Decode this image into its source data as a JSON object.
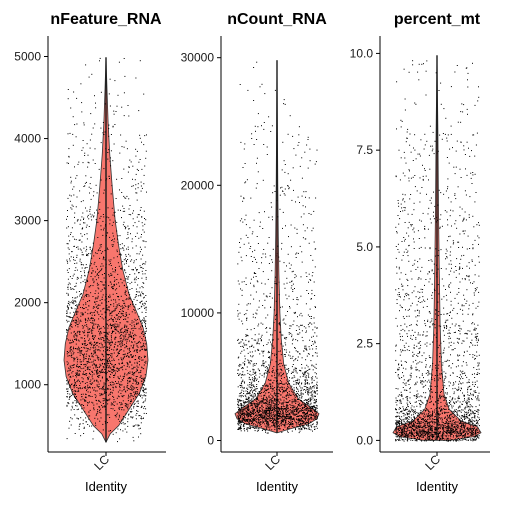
{
  "chart_data": [
    {
      "type": "violin",
      "title": "nFeature_RNA",
      "xlabel": "Identity",
      "categories": [
        "LC"
      ],
      "yticks": [
        1000,
        2000,
        3000,
        4000,
        5000
      ],
      "ylim": [
        180,
        5250
      ],
      "range": [
        300,
        4990
      ],
      "median": 1500,
      "iqr": [
        1150,
        2100
      ],
      "density": [
        [
          300,
          0.0
        ],
        [
          400,
          0.1
        ],
        [
          500,
          0.3
        ],
        [
          700,
          0.55
        ],
        [
          900,
          0.8
        ],
        [
          1100,
          0.95
        ],
        [
          1300,
          1.0
        ],
        [
          1500,
          0.97
        ],
        [
          1700,
          0.88
        ],
        [
          1900,
          0.72
        ],
        [
          2100,
          0.55
        ],
        [
          2400,
          0.4
        ],
        [
          2700,
          0.3
        ],
        [
          3000,
          0.22
        ],
        [
          3400,
          0.15
        ],
        [
          3800,
          0.09
        ],
        [
          4200,
          0.05
        ],
        [
          4600,
          0.025
        ],
        [
          4990,
          0.0
        ]
      ],
      "fill_color": "#f8766d"
    },
    {
      "type": "violin",
      "title": "nCount_RNA",
      "xlabel": "Identity",
      "categories": [
        "LC"
      ],
      "yticks": [
        0,
        10000,
        20000,
        30000
      ],
      "ylim": [
        -900,
        31700
      ],
      "range": [
        600,
        29800
      ],
      "median": 2200,
      "iqr": [
        1300,
        3800
      ],
      "density": [
        [
          600,
          0.0
        ],
        [
          900,
          0.3
        ],
        [
          1300,
          0.75
        ],
        [
          1700,
          0.95
        ],
        [
          2100,
          1.0
        ],
        [
          2600,
          0.8
        ],
        [
          3300,
          0.5
        ],
        [
          4500,
          0.28
        ],
        [
          6000,
          0.16
        ],
        [
          8000,
          0.1
        ],
        [
          10000,
          0.07
        ],
        [
          13000,
          0.045
        ],
        [
          16000,
          0.03
        ],
        [
          20000,
          0.02
        ],
        [
          25000,
          0.01
        ],
        [
          29800,
          0.0
        ]
      ],
      "fill_color": "#f8766d"
    },
    {
      "type": "violin",
      "title": "percent_mt",
      "xlabel": "Identity",
      "categories": [
        "LC"
      ],
      "yticks": [
        0.0,
        2.5,
        5.0,
        7.5,
        10.0
      ],
      "ytick_labels": [
        "0.0",
        "2.5",
        "5.0",
        "7.5",
        "10.0"
      ],
      "ylim": [
        -0.3,
        10.45
      ],
      "range": [
        0.0,
        9.95
      ],
      "median": 0.3,
      "iqr": [
        0.15,
        0.9
      ],
      "density": [
        [
          0.0,
          0.3
        ],
        [
          0.1,
          0.85
        ],
        [
          0.2,
          1.0
        ],
        [
          0.35,
          0.92
        ],
        [
          0.5,
          0.55
        ],
        [
          0.8,
          0.28
        ],
        [
          1.2,
          0.16
        ],
        [
          2.0,
          0.1
        ],
        [
          3.0,
          0.07
        ],
        [
          4.5,
          0.05
        ],
        [
          6.0,
          0.035
        ],
        [
          8.0,
          0.02
        ],
        [
          9.95,
          0.0
        ]
      ],
      "fill_color": "#f8766d"
    }
  ]
}
